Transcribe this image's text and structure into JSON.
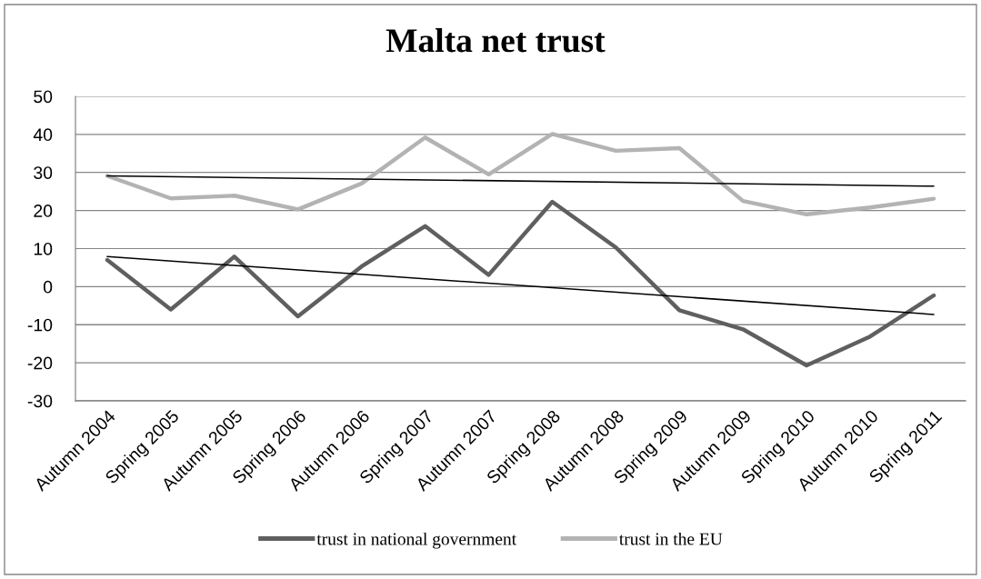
{
  "chart_data": {
    "type": "line",
    "title": "Malta net trust",
    "categories": [
      "Autumn 2004",
      "Spring 2005",
      "Autumn 2005",
      "Spring 2006",
      "Autumn 2006",
      "Spring 2007",
      "Autumn 2007",
      "Spring 2008",
      "Autumn 2008",
      "Spring 2009",
      "Autumn 2009",
      "Spring 2010",
      "Autumn 2010",
      "Spring 2011"
    ],
    "series": [
      {
        "name": "trust in national government",
        "color": "#5f5f5f",
        "values": [
          7.0,
          -6.0,
          7.9,
          -7.8,
          5.3,
          15.9,
          3.1,
          22.3,
          10.3,
          -6.2,
          -11.2,
          -20.7,
          -13.1,
          -2.3
        ]
      },
      {
        "name": "trust in the EU",
        "color": "#b3b3b3",
        "values": [
          29.1,
          23.2,
          23.9,
          20.3,
          27.1,
          39.2,
          29.5,
          40.1,
          35.7,
          36.4,
          22.5,
          19.0,
          20.8,
          23.1
        ]
      },
      {
        "type": "line",
        "color": "#000000",
        "x": [
          "Autumn 2004",
          "Spring 2011"
        ],
        "values": [
          7.9,
          -7.3
        ]
      },
      {
        "type": "line",
        "color": "#000000",
        "x": [
          "Autumn 2004",
          "Spring 2011"
        ],
        "values": [
          29.1,
          26.4
        ]
      }
    ],
    "ylim": [
      -30,
      50
    ],
    "yticks": [
      -30,
      -20,
      -10,
      0,
      10,
      20,
      30,
      40,
      50
    ],
    "grid": "y",
    "legend": "bottom",
    "line_style": "solid"
  }
}
